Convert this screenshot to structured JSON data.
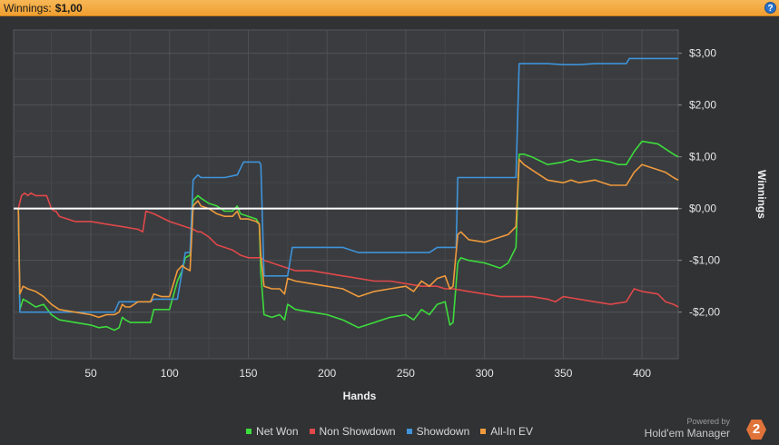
{
  "header": {
    "label": "Winnings:",
    "value": "$1,00",
    "help_glyph": "?"
  },
  "brand": {
    "powered": "Powered by",
    "product": "Hold'em Manager",
    "logo_text": "2"
  },
  "colors": {
    "bg": "#303234",
    "plot_bg": "#3a3c3f",
    "grid": "#4f5255",
    "zero": "#ffffff",
    "net_won": "#3ddc3d",
    "non_showdown": "#e0484a",
    "showdown": "#3f93d9",
    "all_in_ev": "#ef9a3d"
  },
  "chart_data": {
    "type": "line",
    "title": "",
    "xlabel": "Hands",
    "ylabel": "Winnings",
    "xlim": [
      1,
      423
    ],
    "ylim": [
      -2.9,
      3.45
    ],
    "x_ticks": [
      50,
      100,
      150,
      200,
      250,
      300,
      350,
      400
    ],
    "x_tick_labels": [
      "50",
      "100",
      "150",
      "200",
      "250",
      "300",
      "350",
      "400"
    ],
    "y_ticks": [
      3,
      2,
      1,
      0,
      -1,
      -2
    ],
    "y_tick_labels": [
      "$3,00",
      "$2,00",
      "$1,00",
      "$0,00",
      "-$1,00",
      "-$2,00"
    ],
    "zero_line": 0,
    "legend_position": "bottom",
    "grid": true,
    "series": [
      {
        "name": "Net Won",
        "color": "#3ddc3d",
        "x": [
          1,
          4,
          5,
          7,
          10,
          15,
          20,
          25,
          30,
          40,
          50,
          55,
          60,
          65,
          68,
          70,
          72,
          75,
          80,
          88,
          90,
          95,
          100,
          105,
          108,
          110,
          113,
          115,
          118,
          120,
          125,
          130,
          135,
          140,
          143,
          145,
          150,
          155,
          157,
          158,
          160,
          165,
          170,
          173,
          175,
          180,
          190,
          200,
          210,
          220,
          230,
          240,
          250,
          255,
          260,
          265,
          270,
          275,
          278,
          280,
          283,
          285,
          290,
          300,
          310,
          315,
          320,
          322,
          325,
          330,
          340,
          350,
          355,
          360,
          370,
          380,
          385,
          390,
          395,
          400,
          410,
          415,
          420,
          423
        ],
        "y": [
          0,
          0,
          -1.95,
          -1.75,
          -1.8,
          -1.9,
          -1.85,
          -2.05,
          -2.15,
          -2.2,
          -2.25,
          -2.3,
          -2.28,
          -2.35,
          -2.3,
          -2.1,
          -2.15,
          -2.2,
          -2.2,
          -2.2,
          -1.95,
          -1.95,
          -1.95,
          -1.4,
          -1.2,
          -0.95,
          -0.9,
          0.15,
          0.25,
          0.2,
          0.1,
          0.05,
          -0.05,
          -0.05,
          0.05,
          -0.1,
          -0.15,
          -0.2,
          -0.3,
          -1.25,
          -2.05,
          -2.1,
          -2.05,
          -2.15,
          -1.85,
          -1.95,
          -2.0,
          -2.05,
          -2.15,
          -2.3,
          -2.2,
          -2.1,
          -2.05,
          -2.15,
          -1.95,
          -2.05,
          -1.85,
          -1.8,
          -2.25,
          -2.2,
          -1.05,
          -0.95,
          -1.0,
          -1.05,
          -1.15,
          -1.05,
          -0.75,
          1.05,
          1.05,
          1.0,
          0.85,
          0.9,
          0.95,
          0.9,
          0.95,
          0.9,
          0.85,
          0.85,
          1.1,
          1.3,
          1.25,
          1.15,
          1.05,
          1.0
        ]
      },
      {
        "name": "Non Showdown",
        "color": "#e0484a",
        "x": [
          1,
          4,
          6,
          8,
          10,
          12,
          15,
          18,
          22,
          25,
          27,
          28,
          30,
          40,
          50,
          60,
          70,
          80,
          83,
          85,
          90,
          100,
          105,
          110,
          115,
          118,
          120,
          125,
          130,
          135,
          140,
          145,
          150,
          155,
          158,
          160,
          165,
          170,
          175,
          180,
          185,
          190,
          200,
          210,
          220,
          230,
          240,
          250,
          260,
          270,
          275,
          280,
          290,
          300,
          310,
          320,
          330,
          340,
          345,
          350,
          360,
          370,
          380,
          390,
          395,
          400,
          410,
          415,
          420,
          423
        ],
        "y": [
          0,
          0,
          0.25,
          0.3,
          0.25,
          0.3,
          0.25,
          0.25,
          0.25,
          0.0,
          -0.05,
          -0.05,
          -0.15,
          -0.25,
          -0.25,
          -0.3,
          -0.35,
          -0.4,
          -0.45,
          -0.05,
          -0.1,
          -0.25,
          -0.3,
          -0.35,
          -0.4,
          -0.45,
          -0.45,
          -0.55,
          -0.7,
          -0.75,
          -0.8,
          -0.9,
          -0.95,
          -0.95,
          -0.95,
          -1.0,
          -1.05,
          -1.1,
          -1.15,
          -1.2,
          -1.2,
          -1.2,
          -1.25,
          -1.3,
          -1.35,
          -1.4,
          -1.4,
          -1.45,
          -1.5,
          -1.5,
          -1.55,
          -1.55,
          -1.6,
          -1.65,
          -1.7,
          -1.7,
          -1.7,
          -1.75,
          -1.8,
          -1.7,
          -1.75,
          -1.8,
          -1.85,
          -1.8,
          -1.55,
          -1.6,
          -1.65,
          -1.8,
          -1.85,
          -1.9
        ]
      },
      {
        "name": "Showdown",
        "color": "#3f93d9",
        "x": [
          1,
          4,
          5,
          40,
          65,
          68,
          88,
          90,
          105,
          110,
          113,
          115,
          118,
          120,
          135,
          143,
          147,
          157,
          158,
          160,
          175,
          178,
          190,
          205,
          210,
          220,
          230,
          240,
          250,
          265,
          270,
          280,
          282,
          283,
          300,
          310,
          318,
          320,
          322,
          324,
          340,
          350,
          360,
          370,
          380,
          390,
          392,
          400,
          410,
          423
        ],
        "y": [
          0,
          0,
          -2.0,
          -2.0,
          -2.0,
          -1.8,
          -1.8,
          -1.75,
          -1.75,
          -0.85,
          -0.85,
          0.55,
          0.65,
          0.6,
          0.6,
          0.65,
          0.9,
          0.9,
          0.85,
          -1.3,
          -1.3,
          -0.75,
          -0.75,
          -0.75,
          -0.75,
          -0.85,
          -0.85,
          -0.85,
          -0.85,
          -0.85,
          -0.75,
          -0.75,
          -0.75,
          0.6,
          0.6,
          0.6,
          0.6,
          0.6,
          2.8,
          2.8,
          2.8,
          2.78,
          2.78,
          2.8,
          2.8,
          2.8,
          2.9,
          2.9,
          2.9,
          2.9
        ]
      },
      {
        "name": "All-In EV",
        "color": "#ef9a3d",
        "x": [
          1,
          4,
          5,
          7,
          10,
          15,
          20,
          25,
          30,
          40,
          50,
          55,
          60,
          65,
          68,
          70,
          72,
          75,
          80,
          88,
          90,
          95,
          100,
          105,
          108,
          110,
          113,
          115,
          118,
          120,
          125,
          130,
          135,
          140,
          143,
          145,
          150,
          155,
          157,
          158,
          160,
          165,
          170,
          173,
          175,
          180,
          190,
          200,
          210,
          220,
          230,
          240,
          250,
          255,
          260,
          265,
          270,
          275,
          278,
          280,
          283,
          285,
          290,
          300,
          310,
          315,
          320,
          322,
          325,
          330,
          340,
          350,
          355,
          360,
          370,
          380,
          385,
          390,
          395,
          400,
          410,
          415,
          420,
          423
        ],
        "y": [
          0,
          0,
          -1.65,
          -1.5,
          -1.55,
          -1.6,
          -1.7,
          -1.85,
          -1.95,
          -2.0,
          -2.05,
          -2.1,
          -2.05,
          -2.05,
          -2.0,
          -1.85,
          -1.9,
          -1.9,
          -1.8,
          -1.8,
          -1.65,
          -1.7,
          -1.7,
          -1.2,
          -1.1,
          -1.15,
          -1.2,
          0.05,
          0.15,
          0.05,
          0.0,
          -0.1,
          -0.15,
          -0.15,
          -0.05,
          -0.2,
          -0.2,
          -0.25,
          -0.3,
          -0.9,
          -1.5,
          -1.55,
          -1.55,
          -1.65,
          -1.35,
          -1.4,
          -1.45,
          -1.5,
          -1.55,
          -1.7,
          -1.6,
          -1.55,
          -1.5,
          -1.6,
          -1.4,
          -1.5,
          -1.35,
          -1.3,
          -1.55,
          -1.5,
          -0.5,
          -0.45,
          -0.6,
          -0.65,
          -0.55,
          -0.5,
          -0.35,
          0.95,
          0.85,
          0.75,
          0.55,
          0.5,
          0.55,
          0.5,
          0.55,
          0.45,
          0.45,
          0.45,
          0.7,
          0.85,
          0.75,
          0.7,
          0.6,
          0.55
        ]
      }
    ]
  }
}
